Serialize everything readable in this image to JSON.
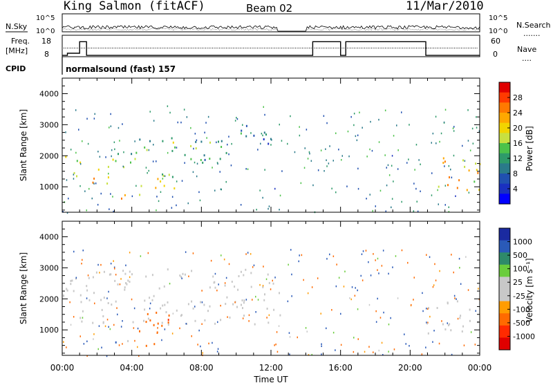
{
  "header": {
    "station": "King Salmon (fitACF)",
    "beam": "Beam 02",
    "date": "11/Mar/2010"
  },
  "scan_panel": {
    "left_labels": [
      "N.Sky",
      "Freq.",
      "[MHz]",
      "CPID"
    ],
    "right_labels": [
      "N.Search",
      "Nave"
    ],
    "nsky_ticks": [
      "10^5",
      "10^0"
    ],
    "freq_ticks": [
      "18",
      "8"
    ],
    "nave_ticks": [
      "60",
      "0"
    ],
    "cpid_text": "normalsound (fast) 157"
  },
  "colorbars": {
    "power": {
      "label": "Power [dB]",
      "ticks": [
        "28",
        "24",
        "20",
        "16",
        "12",
        "8",
        "4"
      ],
      "colors": [
        "#e00000",
        "#ff3a00",
        "#ff7a00",
        "#ffa800",
        "#f2d400",
        "#c8e040",
        "#4cc24a",
        "#2e9a6a",
        "#2a7a8a",
        "#2050b0",
        "#1a30c0",
        "#0000ff"
      ]
    },
    "velocity": {
      "label": "Velocity [m s⁻¹]",
      "ticks": [
        "1000",
        "500",
        "100",
        "25",
        "-25",
        "-100",
        "-500",
        "-1000"
      ],
      "colors": [
        "#1a2aa0",
        "#2a5ab8",
        "#2e8a6a",
        "#6acd3c",
        "#c8c8c8",
        "#c8c8c8",
        "#ff9c00",
        "#ff6a00",
        "#ff2a00",
        "#e00000"
      ]
    }
  },
  "chart_data": [
    {
      "type": "heatmap",
      "name": "Power",
      "xlabel": "",
      "ylabel": "Slant Range [km]",
      "xlim": [
        "00:00",
        "24:00"
      ],
      "ylim": [
        180,
        4500
      ],
      "yticks": [
        1000,
        2000,
        3000,
        4000
      ],
      "colorbar": "Power [dB]",
      "bands": [
        {
          "t0": 0.0,
          "t1": 1.0,
          "r0": 1200,
          "r1": 2100,
          "power": 16
        },
        {
          "t0": 1.4,
          "t1": 2.8,
          "r0": 1000,
          "r1": 1800,
          "power": 20
        },
        {
          "t0": 2.5,
          "t1": 4.2,
          "r0": 1600,
          "r1": 2300,
          "power": 14
        },
        {
          "t0": 3.0,
          "t1": 4.5,
          "r0": 600,
          "r1": 1000,
          "power": 22
        },
        {
          "t0": 4.5,
          "t1": 6.5,
          "r0": 800,
          "r1": 1700,
          "power": 18
        },
        {
          "t0": 4.2,
          "t1": 6.8,
          "r0": 1900,
          "r1": 2600,
          "power": 12
        },
        {
          "t0": 7.0,
          "t1": 10.0,
          "r0": 1800,
          "r1": 2800,
          "power": 10
        },
        {
          "t0": 9.5,
          "t1": 12.5,
          "r0": 2400,
          "r1": 3000,
          "power": 8
        },
        {
          "t0": 21.0,
          "t1": 24.0,
          "r0": 900,
          "r1": 2000,
          "power": 20
        }
      ]
    },
    {
      "type": "heatmap",
      "name": "Velocity",
      "xlabel": "Time UT",
      "ylabel": "Slant Range [km]",
      "xlim": [
        "00:00",
        "24:00"
      ],
      "ylim": [
        180,
        4500
      ],
      "yticks": [
        1000,
        2000,
        3000,
        4000
      ],
      "xticks": [
        "00:00",
        "04:00",
        "08:00",
        "12:00",
        "16:00",
        "20:00",
        "00:00"
      ],
      "colorbar": "Velocity [m s⁻¹]",
      "bands": [
        {
          "t0": 0.0,
          "t1": 12.5,
          "r0": 1200,
          "r1": 3000,
          "velocity": 0
        },
        {
          "t0": 3.0,
          "t1": 5.0,
          "r0": 500,
          "r1": 700,
          "velocity": 150
        },
        {
          "t0": 4.2,
          "t1": 6.5,
          "r0": 500,
          "r1": 1600,
          "velocity": -400
        },
        {
          "t0": 21.0,
          "t1": 24.0,
          "r0": 900,
          "r1": 2000,
          "velocity": 0
        }
      ]
    }
  ]
}
